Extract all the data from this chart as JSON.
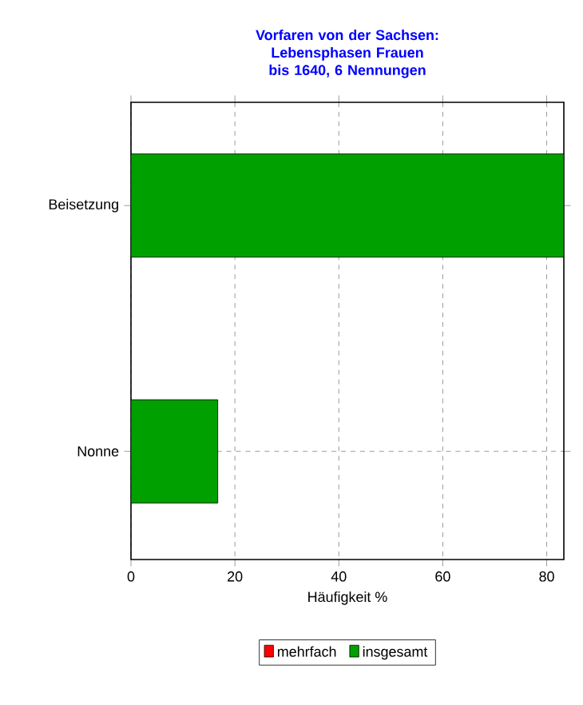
{
  "chart_data": {
    "type": "bar",
    "orientation": "horizontal",
    "title": "Vorfaren von der Sachsen: Lebensphasen Frauen bis 1640, 6 Nennungen",
    "xlabel": "Häufigkeit %",
    "categories": [
      "Beisetzung",
      "Nonne"
    ],
    "series": [
      {
        "name": "mehrfach",
        "color": "#ff0000",
        "values": [
          null,
          null
        ]
      },
      {
        "name": "insgesamt",
        "color": "#00a000",
        "values": [
          83.3,
          16.7
        ]
      }
    ],
    "xlim": [
      0,
      83.3
    ],
    "xticks": [
      0,
      20,
      40,
      60,
      80
    ],
    "grid": true,
    "legend": "bottom"
  }
}
